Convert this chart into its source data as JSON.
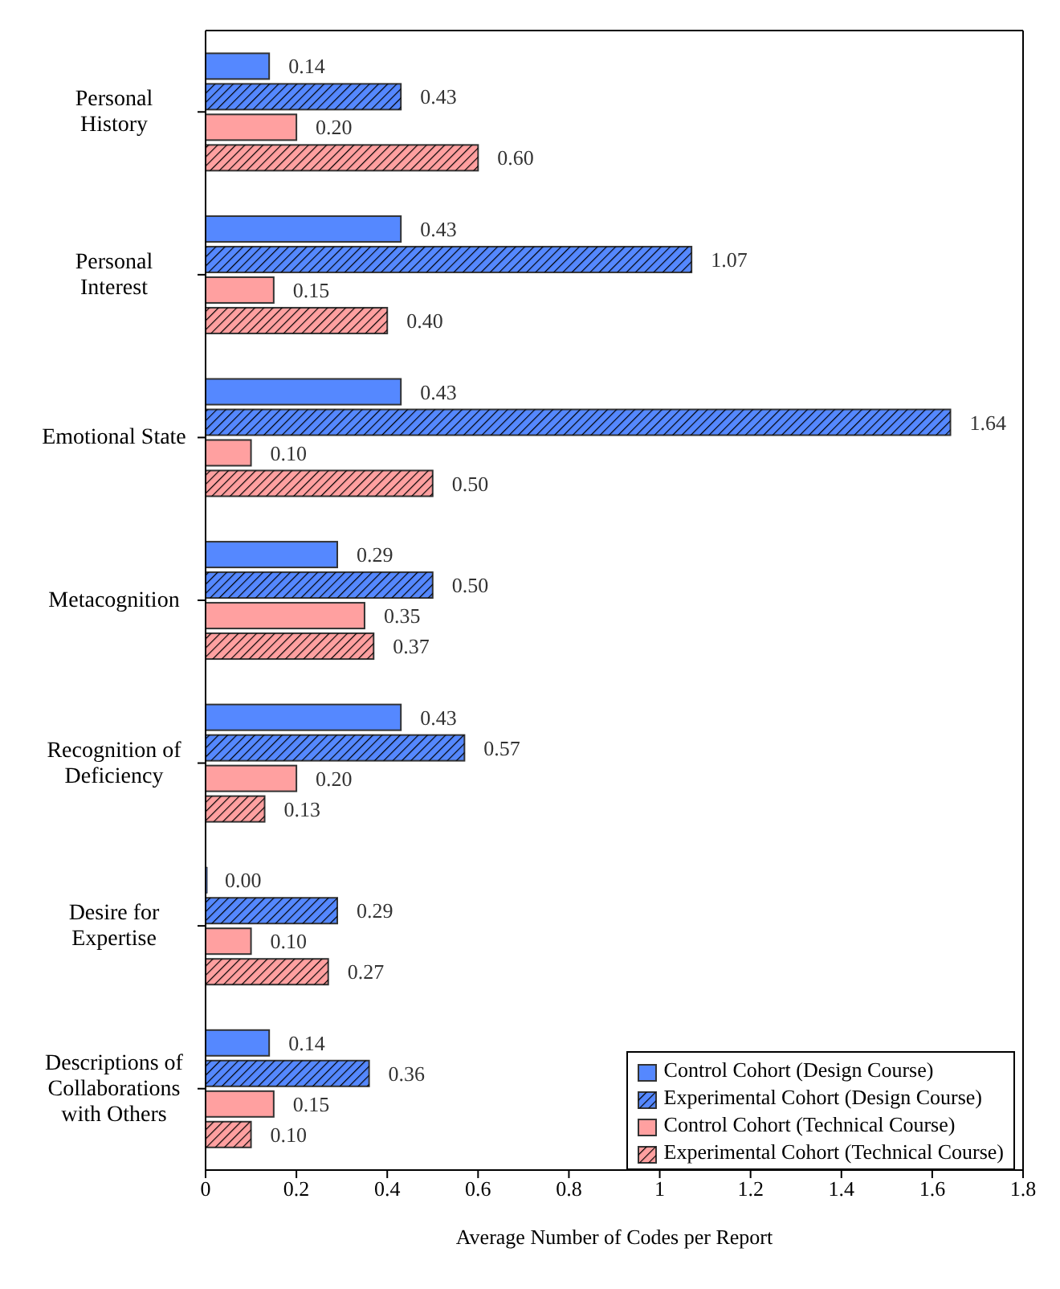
{
  "chart_data": {
    "type": "bar",
    "orientation": "horizontal",
    "xlabel": "Average Number of Codes per Report",
    "categories": [
      "Personal History",
      "Personal Interest",
      "Emotional State",
      "Metacognition",
      "Recognition of Deficiency",
      "Desire for Expertise",
      "Descriptions of Collaborations with Others"
    ],
    "series": [
      {
        "name": "Control Cohort (Design Course)",
        "color": "#5588ff",
        "values": [
          0.14,
          0.43,
          0.43,
          0.29,
          0.43,
          0.0,
          0.14
        ],
        "value_labels": [
          "0.14",
          "0.43",
          "0.43",
          "0.29",
          "0.43",
          "0.00",
          "0.14"
        ]
      },
      {
        "name": "Experimental Cohort (Design Course)",
        "color": "#5588ff",
        "values": [
          0.43,
          1.07,
          1.64,
          0.5,
          0.57,
          0.29,
          0.36
        ],
        "value_labels": [
          "0.43",
          "1.07",
          "1.64",
          "0.50",
          "0.57",
          "0.29",
          "0.36"
        ]
      },
      {
        "name": "Control Cohort (Technical Course)",
        "color": "#ffa0a0",
        "values": [
          0.2,
          0.15,
          0.1,
          0.35,
          0.2,
          0.1,
          0.15
        ],
        "value_labels": [
          "0.20",
          "0.15",
          "0.10",
          "0.35",
          "0.20",
          "0.10",
          "0.15"
        ]
      },
      {
        "name": "Experimental Cohort (Technical Course)",
        "color": "#ffa0a0",
        "values": [
          0.6,
          0.4,
          0.5,
          0.37,
          0.13,
          0.27,
          0.1
        ],
        "value_labels": [
          "0.60",
          "0.40",
          "0.50",
          "0.37",
          "0.13",
          "0.27",
          "0.10"
        ]
      }
    ],
    "xlim": [
      0,
      1.8
    ],
    "xticks": [
      0,
      {
        "value": 0.2,
        "label": "0.2"
      },
      {
        "value": 0.4,
        "label": "0.4"
      },
      {
        "value": 0.6,
        "label": "0.6"
      },
      {
        "value": 0.8,
        "label": "0.8"
      },
      1,
      {
        "value": 1.2,
        "label": "1.2"
      },
      {
        "value": 1.4,
        "label": "1.4"
      },
      {
        "value": 1.6,
        "label": "1.6"
      },
      {
        "value": 1.8,
        "label": "1.8"
      }
    ],
    "grid": false,
    "legend": "bottom right"
  }
}
